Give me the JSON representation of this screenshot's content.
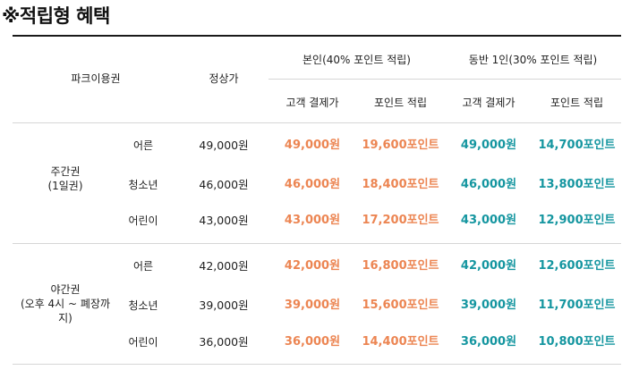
{
  "title": "※적립형 혜택",
  "headers": {
    "park_pass": "파크이용권",
    "regular_price": "정상가",
    "self_group": "본인(40% 포인트 적립)",
    "companion_group": "동반 1인(30% 포인트 적립)",
    "payment": "고객 결제가",
    "points": "포인트 적립"
  },
  "sections": [
    {
      "name": "주간권",
      "note": "(1일권)",
      "rows": [
        {
          "type": "어른",
          "regular": "49,000원",
          "self_pay": "49,000원",
          "self_points": "19,600포인트",
          "comp_pay": "49,000원",
          "comp_points": "14,700포인트"
        },
        {
          "type": "청소년",
          "regular": "46,000원",
          "self_pay": "46,000원",
          "self_points": "18,400포인트",
          "comp_pay": "46,000원",
          "comp_points": "13,800포인트"
        },
        {
          "type": "어린이",
          "regular": "43,000원",
          "self_pay": "43,000원",
          "self_points": "17,200포인트",
          "comp_pay": "43,000원",
          "comp_points": "12,900포인트"
        }
      ]
    },
    {
      "name": "야간권",
      "note": "(오후 4시 ~ 폐장까지)",
      "rows": [
        {
          "type": "어른",
          "regular": "42,000원",
          "self_pay": "42,000원",
          "self_points": "16,800포인트",
          "comp_pay": "42,000원",
          "comp_points": "12,600포인트"
        },
        {
          "type": "청소년",
          "regular": "39,000원",
          "self_pay": "39,000원",
          "self_points": "15,600포인트",
          "comp_pay": "39,000원",
          "comp_points": "11,700포인트"
        },
        {
          "type": "어린이",
          "regular": "36,000원",
          "self_pay": "36,000원",
          "self_points": "14,400포인트",
          "comp_pay": "36,000원",
          "comp_points": "10,800포인트"
        }
      ]
    }
  ],
  "colors": {
    "self_accent": "#ec8552",
    "companion_accent": "#1596a0",
    "border": "#d6d6d6"
  }
}
